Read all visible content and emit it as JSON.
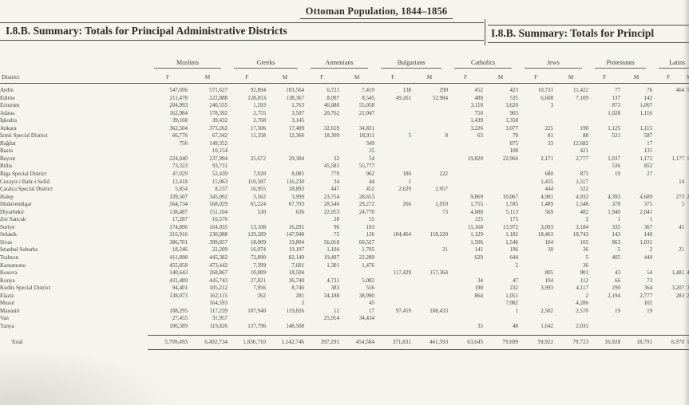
{
  "page": {
    "title": "Ottoman Population, 1844–1856",
    "left_header": "I.8.B. Summary: Totals for Principal Administrative Districts",
    "right_header": "I.8.B. Summary: Totals for Principl"
  },
  "colors": {
    "paper": "#f5f4ef",
    "ink": "#3a382f",
    "rule": "#55524a"
  },
  "table": {
    "row_label_header": "District",
    "groups": [
      "Muslims",
      "Greeks",
      "Armenians",
      "Bulgarians",
      "Catholics",
      "Jews",
      "Protestants",
      "Latins"
    ],
    "subheaders": [
      "F",
      "M"
    ],
    "rows": [
      {
        "district": "Aydin",
        "values": [
          "547,696",
          "571,627",
          "92,894",
          "103,564",
          "6,721",
          "7,419",
          "138",
          "290",
          "452",
          "423",
          "10,731",
          "11,422",
          "77",
          "76",
          "464",
          "5"
        ]
      },
      {
        "district": "Edirne",
        "values": [
          "211,478",
          "222,888",
          "128,853",
          "138,367",
          "8,097",
          "8,545",
          "49,261",
          "52,984",
          "489",
          "535",
          "6,608",
          "7,109",
          "137",
          "142",
          "",
          ""
        ]
      },
      {
        "district": "Erzurum",
        "values": [
          "204,993",
          "240,555",
          "1,593",
          "1,763",
          "46,080",
          "55,058",
          "",
          "",
          "3,110",
          "3,620",
          "3",
          "",
          "873",
          "1,067",
          "",
          ""
        ]
      },
      {
        "district": "Adana",
        "values": [
          "162,984",
          "178,392",
          "2,755",
          "3,507",
          "20,762",
          "21,047",
          "",
          "",
          "750",
          "903",
          "",
          "",
          "1,028",
          "1,116",
          "",
          ""
        ]
      },
      {
        "district": "İşkodra",
        "values": [
          "39,168",
          "39,432",
          "2,768",
          "3,145",
          "",
          "",
          "",
          "",
          "1,439",
          "1,358",
          "",
          "",
          "",
          "",
          "",
          ""
        ]
      },
      {
        "district": "Ankara",
        "values": [
          "362,504",
          "373,262",
          "17,506",
          "17,409",
          "32,659",
          "34,831",
          "",
          "",
          "3,226",
          "3,077",
          "225",
          "190",
          "1,125",
          "1,115",
          "",
          ""
        ]
      },
      {
        "district": "İzmit Special District",
        "values": [
          "66,776",
          "67,342",
          "11,358",
          "12,366",
          "18,309",
          "18,911",
          "5",
          "8",
          "63",
          "70",
          "81",
          "88",
          "521",
          "587",
          "",
          ""
        ]
      },
      {
        "district": "Bağdat",
        "values": [
          "756",
          "149,352",
          "",
          "",
          "",
          "349",
          "",
          "",
          "",
          "875",
          "33",
          "12,682",
          "",
          "17",
          "",
          ""
        ]
      },
      {
        "district": "Basra",
        "values": [
          "",
          "10,154",
          "",
          "",
          "",
          "35",
          "",
          "",
          "",
          "108",
          "",
          "421",
          "",
          "135",
          "",
          ""
        ]
      },
      {
        "district": "Beyrut",
        "values": [
          "224,040",
          "237,994",
          "25,672",
          "29,304",
          "32",
          "54",
          "",
          "",
          "19,820",
          "22,966",
          "2,171",
          "2,777",
          "1,037",
          "1,172",
          "1,177",
          "1,20"
        ]
      },
      {
        "district": "Bitlis",
        "values": [
          "73,323",
          "93,731",
          "",
          "",
          "45,581",
          "55,777",
          "",
          "",
          "",
          "",
          "",
          "",
          "536",
          "852",
          "",
          ""
        ]
      },
      {
        "district": "Biga Special District",
        "values": [
          "47,029",
          "52,439",
          "7,020",
          "8,081",
          "779",
          "962",
          "180",
          "222",
          "",
          "",
          "680",
          "875",
          "19",
          "27",
          "",
          ""
        ]
      },
      {
        "district": "Cezayir-i Bahr-i Sefid",
        "values": [
          "12,418",
          "15,063",
          "110,587",
          "116,230",
          "34",
          "44",
          "1",
          "",
          "",
          "",
          "1,435",
          "1,517",
          "",
          "",
          "14",
          ""
        ]
      },
      {
        "district": "Çatalca Special District",
        "values": [
          "5,854",
          "8,237",
          "16,955",
          "18,893",
          "447",
          "452",
          "2,629",
          "2,957",
          "",
          "",
          "444",
          "522",
          "",
          "",
          "",
          ""
        ]
      },
      {
        "district": "Halep",
        "values": [
          "339,507",
          "345,092",
          "3,562",
          "3,990",
          "23,754",
          "28,653",
          "",
          "",
          "9,869",
          "10,067",
          "4,981",
          "4,932",
          "4,393",
          "4,689",
          "273",
          "2"
        ]
      },
      {
        "district": "Hüdavendigar",
        "values": [
          "564,734",
          "568,029",
          "65,224",
          "67,793",
          "28,546",
          "29,272",
          "266",
          "1,019",
          "1,755",
          "1,595",
          "1,489",
          "1,548",
          "378",
          "375",
          "5",
          ""
        ]
      },
      {
        "district": "Diyarbekir",
        "values": [
          "138,487",
          "151,104",
          "530",
          "636",
          "22,053",
          "24,770",
          "",
          "73",
          "4,680",
          "5,113",
          "569",
          "482",
          "1,940",
          "2,041",
          "",
          ""
        ]
      },
      {
        "district": "Zor Sancak",
        "values": [
          "17,287",
          "16,576",
          "",
          "",
          "28",
          "55",
          "",
          "",
          "125",
          "175",
          "",
          "2",
          "1",
          "1",
          "",
          ""
        ]
      },
      {
        "district": "Suriye",
        "values": [
          "174,896",
          "164,035",
          "13,108",
          "16,291",
          "96",
          "103",
          "",
          "",
          "11,168",
          "13,972",
          "3,093",
          "3,184",
          "335",
          "367",
          "45",
          ""
        ]
      },
      {
        "district": "Selanik",
        "values": [
          "216,916",
          "230,988",
          "129,289",
          "147,948",
          "75",
          "126",
          "104,464",
          "118,220",
          "1,129",
          "1,182",
          "18,463",
          "18,743",
          "143",
          "140",
          "",
          ""
        ]
      },
      {
        "district": "Sivas",
        "values": [
          "386,701",
          "399,857",
          "18,009",
          "19,804",
          "56,018",
          "60,527",
          "",
          "",
          "1,506",
          "1,546",
          "104",
          "105",
          "863",
          "1,031",
          "",
          ""
        ]
      },
      {
        "district": "Istanbul Suburbs",
        "values": [
          "18,246",
          "22,209",
          "16,074",
          "19,197",
          "1,104",
          "1,705",
          "",
          "21",
          "141",
          "196",
          "30",
          "36",
          "5",
          "2",
          "21",
          ""
        ]
      },
      {
        "district": "Trabzon",
        "values": [
          "411,898",
          "445,382",
          "72,890",
          "82,149",
          "19,497",
          "22,289",
          "",
          "",
          "629",
          "644",
          "",
          "5",
          "405",
          "440",
          "",
          ""
        ]
      },
      {
        "district": "Kastamonu",
        "values": [
          "455,858",
          "473,442",
          "7,399",
          "7,601",
          "1,301",
          "1,476",
          "",
          "",
          "",
          "2",
          "",
          "36",
          "",
          "",
          "",
          ""
        ]
      },
      {
        "district": "Kosova",
        "values": [
          "140,643",
          "268,867",
          "10,889",
          "18,504",
          "",
          "",
          "117,429",
          "157,364",
          "",
          "",
          "805",
          "901",
          "43",
          "54",
          "1,481",
          "4,10"
        ]
      },
      {
        "district": "Konya",
        "values": [
          "431,489",
          "445,743",
          "27,821",
          "26,740",
          "4,731",
          "5,082",
          "",
          "",
          "34",
          "47",
          "104",
          "112",
          "66",
          "73",
          "",
          ""
        ]
      },
      {
        "district": "Kudüs Special District",
        "values": [
          "94,401",
          "105,212",
          "7,956",
          "8,746",
          "383",
          "556",
          "",
          "",
          "190",
          "232",
          "3,993",
          "4,117",
          "290",
          "364",
          "3,207",
          "3,6"
        ]
      },
      {
        "district": "Elaziz",
        "values": [
          "138,073",
          "162,115",
          "262",
          "281",
          "34,188",
          "38,990",
          "",
          "",
          "864",
          "1,051",
          "",
          "2",
          "2,194",
          "2,777",
          "283",
          "2"
        ]
      },
      {
        "district": "Musul",
        "values": [
          "",
          "164,593",
          "",
          "3",
          "",
          "45",
          "",
          "",
          "",
          "7,082",
          "",
          "4,286",
          "",
          "102",
          "",
          ""
        ]
      },
      {
        "district": "Manastir",
        "values": [
          "108,295",
          "117,239",
          "107,940",
          "119,826",
          "12",
          "17",
          "97,459",
          "108,433",
          "",
          "1",
          "2,502",
          "2,570",
          "19",
          "19",
          "",
          ""
        ]
      },
      {
        "district": "Van",
        "values": [
          "27,455",
          "31,957",
          "",
          "",
          "25,914",
          "34,434",
          "",
          "",
          "",
          "",
          "",
          "",
          "",
          "",
          "",
          ""
        ]
      },
      {
        "district": "Yanya",
        "values": [
          "106,589",
          "119,826",
          "137,796",
          "148,508",
          "",
          "",
          "",
          "",
          "35",
          "48",
          "1,642",
          "2,035",
          "",
          "",
          "",
          ""
        ]
      }
    ],
    "total": {
      "district": "Total",
      "values": [
        "5,709,493",
        "6,492,734",
        "1,036,710",
        "1,142,746",
        "397,291",
        "454,584",
        "371,831",
        "441,593",
        "63,645",
        "79,699",
        "59,922",
        "79,723",
        "16,928",
        "18,791",
        "6,970",
        "10,18"
      ]
    }
  }
}
